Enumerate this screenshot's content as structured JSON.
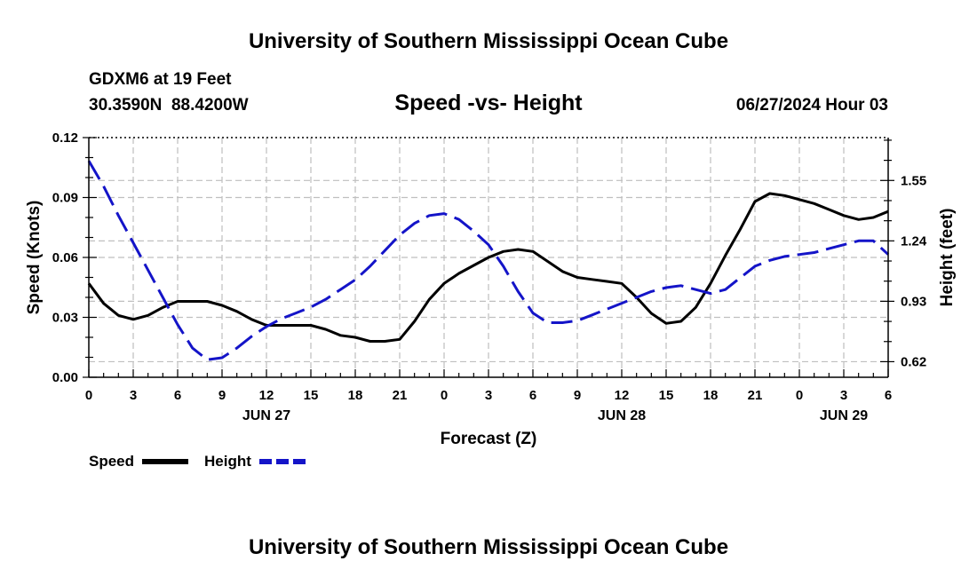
{
  "title": "University of Southern Mississippi Ocean Cube",
  "footer_title": "University of Southern Mississippi Ocean Cube",
  "station": {
    "name": "GDXM6 at 19 Feet",
    "coords": "30.3590N  88.4200W"
  },
  "issued": "06/27/2024 Hour 03",
  "legend": {
    "speed_label": "Speed",
    "height_label": "Height"
  },
  "colors": {
    "speed": "#000000",
    "height": "#1414c8",
    "grid": "#bfbfbf"
  },
  "chart_data": {
    "type": "line",
    "title": "Speed -vs- Height",
    "xlabel": "Forecast (Z)",
    "ylabel": "Speed (Knots)",
    "y2label": "Height (feet)",
    "x_hours": [
      0,
      3,
      6,
      9,
      12,
      15,
      18,
      21,
      24,
      27,
      30,
      33,
      36,
      39,
      42,
      45,
      48,
      51,
      54
    ],
    "x_tick_labels": [
      "0",
      "3",
      "6",
      "9",
      "12",
      "15",
      "18",
      "21",
      "0",
      "3",
      "6",
      "9",
      "12",
      "15",
      "18",
      "21",
      "0",
      "3",
      "6"
    ],
    "day_labels": [
      {
        "hour": 12,
        "label": "JUN 27"
      },
      {
        "hour": 36,
        "label": "JUN 28"
      },
      {
        "hour": 51,
        "label": "JUN 29"
      }
    ],
    "xlim": [
      0,
      54
    ],
    "ylim": [
      0,
      0.12
    ],
    "yticks": [
      0,
      0.03,
      0.06,
      0.09,
      0.12
    ],
    "ytick_labels": [
      "0.00",
      "0.03",
      "0.06",
      "0.09",
      "0.12"
    ],
    "y2lim": [
      0.54,
      1.77
    ],
    "y2ticks": [
      0.62,
      0.93,
      1.24,
      1.55
    ],
    "y2tick_labels": [
      "0.62",
      "0.93",
      "1.24",
      "1.55"
    ],
    "grid": true,
    "series": [
      {
        "name": "Speed",
        "axis": "left",
        "style": "solid",
        "x": [
          0,
          1,
          2,
          3,
          4,
          5,
          6,
          7,
          8,
          9,
          10,
          11,
          12,
          13,
          14,
          15,
          16,
          17,
          18,
          19,
          20,
          21,
          22,
          23,
          24,
          25,
          26,
          27,
          28,
          29,
          30,
          31,
          32,
          33,
          34,
          35,
          36,
          37,
          38,
          39,
          40,
          41,
          42,
          43,
          44,
          45,
          46,
          47,
          48,
          49,
          50,
          51,
          52,
          53,
          54
        ],
        "values": [
          0.047,
          0.037,
          0.031,
          0.029,
          0.031,
          0.035,
          0.038,
          0.038,
          0.038,
          0.036,
          0.033,
          0.029,
          0.026,
          0.026,
          0.026,
          0.026,
          0.024,
          0.021,
          0.02,
          0.018,
          0.018,
          0.019,
          0.028,
          0.039,
          0.047,
          0.052,
          0.056,
          0.06,
          0.063,
          0.064,
          0.063,
          0.058,
          0.053,
          0.05,
          0.049,
          0.048,
          0.047,
          0.04,
          0.032,
          0.027,
          0.028,
          0.035,
          0.047,
          0.061,
          0.074,
          0.088,
          0.092,
          0.091,
          0.089,
          0.087,
          0.084,
          0.081,
          0.079,
          0.08,
          0.083
        ]
      },
      {
        "name": "Height",
        "axis": "right",
        "style": "dashed",
        "x": [
          0,
          1,
          2,
          3,
          4,
          5,
          6,
          7,
          8,
          9,
          10,
          11,
          12,
          13,
          14,
          15,
          16,
          17,
          18,
          19,
          20,
          21,
          22,
          23,
          24,
          25,
          26,
          27,
          28,
          29,
          30,
          31,
          32,
          33,
          34,
          35,
          36,
          37,
          38,
          39,
          40,
          41,
          42,
          43,
          44,
          45,
          46,
          47,
          48,
          49,
          50,
          51,
          52,
          53,
          54
        ],
        "values": [
          1.65,
          1.52,
          1.37,
          1.23,
          1.09,
          0.95,
          0.81,
          0.69,
          0.63,
          0.64,
          0.69,
          0.75,
          0.8,
          0.84,
          0.87,
          0.9,
          0.94,
          0.99,
          1.04,
          1.11,
          1.19,
          1.27,
          1.33,
          1.37,
          1.38,
          1.35,
          1.29,
          1.22,
          1.11,
          0.98,
          0.87,
          0.82,
          0.82,
          0.83,
          0.86,
          0.89,
          0.92,
          0.95,
          0.98,
          1.0,
          1.01,
          0.99,
          0.97,
          0.99,
          1.05,
          1.11,
          1.14,
          1.16,
          1.17,
          1.18,
          1.2,
          1.22,
          1.24,
          1.24,
          1.17
        ]
      }
    ]
  }
}
